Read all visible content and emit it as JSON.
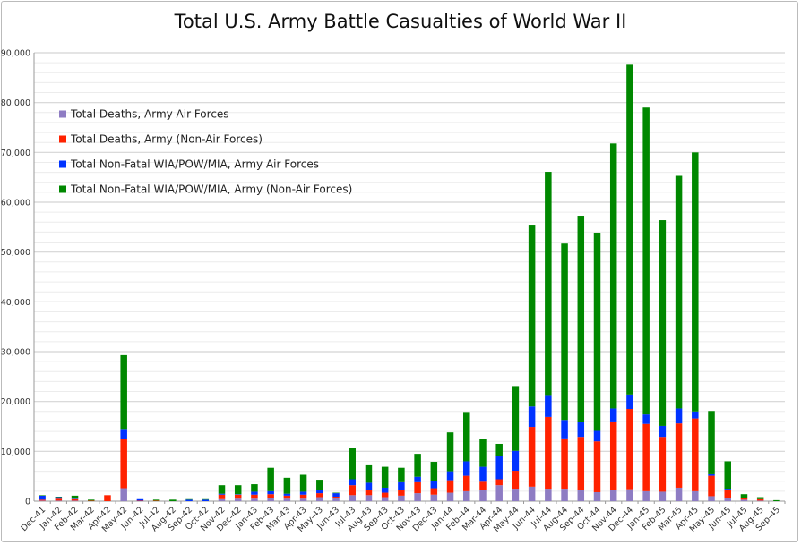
{
  "chart_data": {
    "type": "bar",
    "stacked": true,
    "title": "Total U.S. Army Battle Casualties of World War II",
    "xlabel": "",
    "ylabel": "",
    "ylim": [
      0,
      90000
    ],
    "yticks": [
      0,
      10000,
      20000,
      30000,
      40000,
      50000,
      60000,
      70000,
      80000,
      90000
    ],
    "ytick_labels": [
      "0",
      "10,000",
      "20,000",
      "30,000",
      "40,000",
      "50,000",
      "60,000",
      "70,000",
      "80,000",
      "90,000"
    ],
    "grid": true,
    "legend_position": "top-left",
    "categories": [
      "Dec-41",
      "Jan-42",
      "Feb-42",
      "Mar-42",
      "Apr-42",
      "May-42",
      "Jun-42",
      "Jul-42",
      "Aug-42",
      "Sep-42",
      "Oct-42",
      "Nov-42",
      "Dec-42",
      "Jan-43",
      "Feb-43",
      "Mar-43",
      "Apr-43",
      "May-43",
      "Jun-43",
      "Jul-43",
      "Aug-43",
      "Sep-43",
      "Oct-43",
      "Nov-43",
      "Dec-43",
      "Jan-44",
      "Feb-44",
      "Mar-44",
      "Apr-44",
      "May-44",
      "Jun-44",
      "Jul-44",
      "Aug-44",
      "Sep-44",
      "Oct-44",
      "Nov-44",
      "Dec-44",
      "Jan-45",
      "Feb-45",
      "Mar-45",
      "Apr-45",
      "May-45",
      "Jun-45",
      "Jul-45",
      "Aug-45",
      "Sep-45"
    ],
    "series": [
      {
        "name": "Total Deaths, Army Air Forces",
        "color": "#8e7cc3",
        "values": [
          100,
          100,
          100,
          0,
          0,
          2600,
          0,
          0,
          0,
          0,
          0,
          400,
          500,
          500,
          700,
          500,
          500,
          800,
          700,
          1200,
          1200,
          800,
          1100,
          1600,
          1300,
          1700,
          2000,
          2200,
          3200,
          2500,
          2900,
          2500,
          2500,
          2200,
          1800,
          2300,
          2400,
          2000,
          1900,
          2700,
          2000,
          1000,
          700,
          300,
          100,
          0
        ]
      },
      {
        "name": "Total Deaths, Army (Non-Air Forces)",
        "color": "#ff2200",
        "values": [
          200,
          400,
          300,
          100,
          1200,
          9800,
          100,
          100,
          0,
          0,
          0,
          900,
          800,
          800,
          700,
          600,
          800,
          800,
          200,
          2000,
          1100,
          900,
          1100,
          2200,
          1300,
          2500,
          3100,
          1700,
          1200,
          3600,
          12000,
          14400,
          10100,
          10700,
          10200,
          13700,
          16100,
          13500,
          11000,
          12900,
          14600,
          4100,
          1600,
          300,
          300,
          0
        ]
      },
      {
        "name": "Total Non-Fatal WIA/POW/MIA, Army Air Forces",
        "color": "#0033ff",
        "values": [
          800,
          300,
          100,
          0,
          0,
          2100,
          300,
          0,
          0,
          300,
          300,
          200,
          100,
          600,
          600,
          400,
          600,
          700,
          700,
          1200,
          1400,
          1000,
          1600,
          1100,
          1400,
          1800,
          2900,
          3000,
          4600,
          4000,
          4100,
          4400,
          3700,
          3000,
          2100,
          2600,
          2900,
          1900,
          2200,
          3000,
          1400,
          300,
          200,
          100,
          0,
          0
        ]
      },
      {
        "name": "Total Non-Fatal WIA/POW/MIA, Army (Non-Air Forces)",
        "color": "#008800",
        "values": [
          100,
          100,
          600,
          200,
          0,
          14800,
          0,
          200,
          300,
          100,
          100,
          1700,
          1800,
          1500,
          4700,
          3200,
          3400,
          2000,
          100,
          6200,
          3500,
          4200,
          2900,
          4600,
          3900,
          7800,
          9900,
          5500,
          2500,
          13000,
          36500,
          44800,
          35400,
          41400,
          39800,
          53200,
          66200,
          61600,
          41300,
          46700,
          52000,
          12700,
          5500,
          700,
          400,
          200
        ]
      }
    ]
  }
}
